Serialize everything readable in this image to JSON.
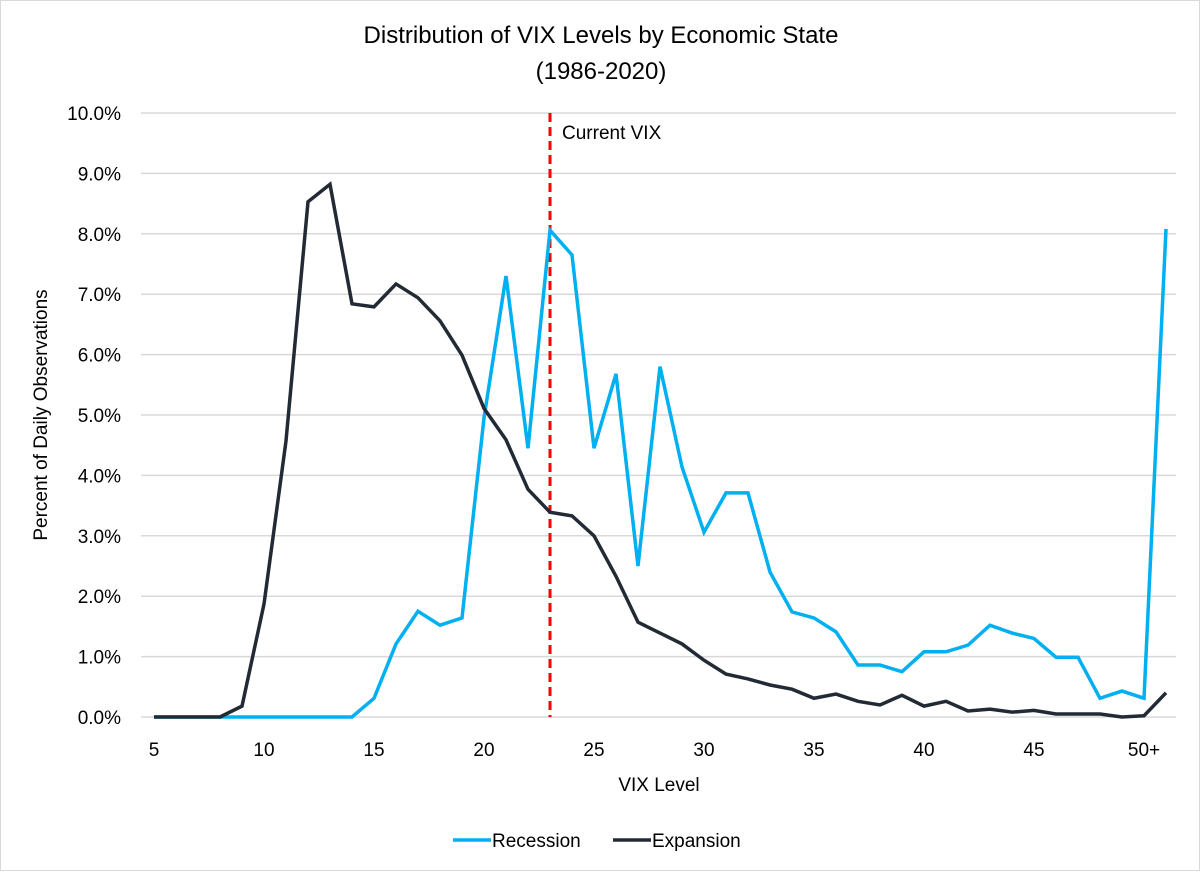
{
  "chart_data": {
    "type": "line",
    "title": "Distribution of VIX Levels by Economic State",
    "subtitle": "(1986-2020)",
    "xlabel": "VIX Level",
    "ylabel": "Percent of Daily Observations",
    "ylim": [
      0,
      10
    ],
    "y_ticks": [
      "0.0%",
      "1.0%",
      "2.0%",
      "3.0%",
      "4.0%",
      "5.0%",
      "6.0%",
      "7.0%",
      "8.0%",
      "9.0%",
      "10.0%"
    ],
    "x": [
      5,
      6,
      7,
      8,
      9,
      10,
      11,
      12,
      13,
      14,
      15,
      16,
      17,
      18,
      19,
      20,
      21,
      22,
      23,
      24,
      25,
      26,
      27,
      28,
      29,
      30,
      31,
      32,
      33,
      34,
      35,
      36,
      37,
      38,
      39,
      40,
      41,
      42,
      43,
      44,
      45,
      46,
      47,
      48,
      49,
      50,
      51
    ],
    "x_tick_labels": [
      {
        "x": 5,
        "label": "5"
      },
      {
        "x": 10,
        "label": "10"
      },
      {
        "x": 15,
        "label": "15"
      },
      {
        "x": 20,
        "label": "20"
      },
      {
        "x": 25,
        "label": "25"
      },
      {
        "x": 30,
        "label": "30"
      },
      {
        "x": 35,
        "label": "35"
      },
      {
        "x": 40,
        "label": "40"
      },
      {
        "x": 45,
        "label": "45"
      },
      {
        "x": 50,
        "label": "50+"
      }
    ],
    "grid": true,
    "legend_position": "bottom",
    "series": [
      {
        "name": "Recession",
        "color": "#00b0f0",
        "values": [
          0,
          0,
          0,
          0,
          0,
          0,
          0,
          0,
          0,
          0,
          0.31,
          1.21,
          1.75,
          1.52,
          1.64,
          4.95,
          7.3,
          4.45,
          8.06,
          7.65,
          4.45,
          5.68,
          2.5,
          5.8,
          4.14,
          3.06,
          3.71,
          3.71,
          2.4,
          1.74,
          1.64,
          1.41,
          0.86,
          0.86,
          0.75,
          1.08,
          1.08,
          1.19,
          1.52,
          1.39,
          1.3,
          0.99,
          0.99,
          0.31,
          0.43,
          0.31,
          8.08
        ]
      },
      {
        "name": "Expansion",
        "color": "#222a35",
        "values": [
          0,
          0,
          0,
          0,
          0.18,
          1.87,
          4.57,
          8.53,
          8.82,
          6.84,
          6.79,
          7.17,
          6.94,
          6.56,
          5.99,
          5.11,
          4.59,
          3.77,
          3.39,
          3.33,
          3.0,
          2.33,
          1.57,
          1.39,
          1.21,
          0.94,
          0.71,
          0.63,
          0.53,
          0.46,
          0.31,
          0.38,
          0.26,
          0.2,
          0.36,
          0.18,
          0.26,
          0.1,
          0.13,
          0.08,
          0.11,
          0.05,
          0.05,
          0.05,
          0.0,
          0.02,
          0.4
        ]
      }
    ],
    "annotations": [
      {
        "type": "vertical-dashed-line",
        "x": 23,
        "color": "#ff0000",
        "label": "Current VIX"
      }
    ]
  }
}
